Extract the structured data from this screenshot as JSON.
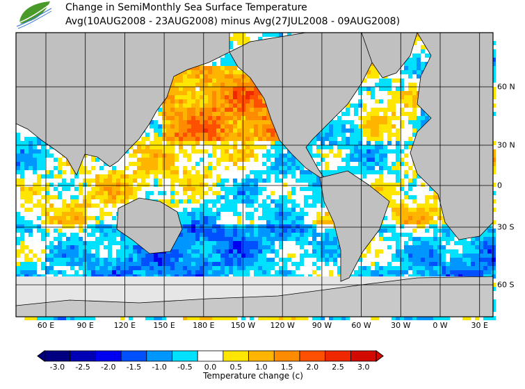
{
  "header": {
    "title": "Change in SemiMonthly Sea Surface Temperature",
    "subtitle": "Avg(10AUG2008 - 23AUG2008) minus Avg(27JUL2008 - 09AUG2008)"
  },
  "map": {
    "longitude_labels": [
      "60 E",
      "90 E",
      "120 E",
      "150 E",
      "180 E",
      "150 W",
      "120 W",
      "90 W",
      "60 W",
      "30 W",
      "0 W",
      "30 E"
    ],
    "latitude_labels": [
      "60 N",
      "30 N",
      "0",
      "30 S",
      "60 S"
    ],
    "land_color": "#c0c0c0",
    "sea_ice_color": "#e6e6e6"
  },
  "colorbar": {
    "title": "Temperature change  (c)",
    "labels": [
      "-3.0",
      "-2.5",
      "-2.0",
      "-1.5",
      "-1.0",
      "-0.5",
      "0.0",
      "0.5",
      "1.0",
      "1.5",
      "2.0",
      "2.5",
      "3.0"
    ],
    "colors": [
      "#000080",
      "#0000b4",
      "#0000f0",
      "#0050ff",
      "#0096ff",
      "#00e0ff",
      "#ffffff",
      "#ffe600",
      "#ffb400",
      "#ff8c00",
      "#ff5000",
      "#f02800",
      "#d20a00"
    ]
  }
}
